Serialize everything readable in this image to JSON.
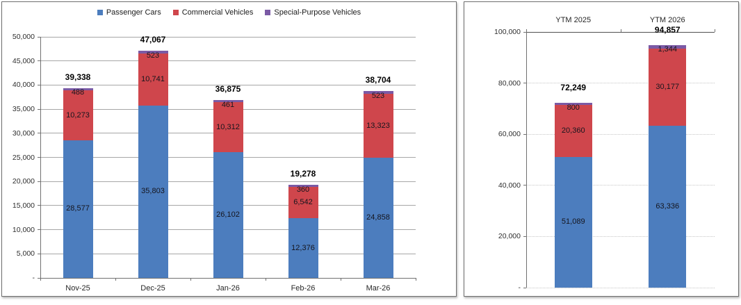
{
  "colors": {
    "passenger_cars": "#4c7dbe",
    "commercial_vehicles": "#cf464c",
    "special_purpose_vehicles": "#7b5aa5",
    "grid_solid": "#a6a6a6",
    "grid_dotted": "#c6c6c6",
    "axis": "#707070"
  },
  "legend": {
    "position": "top",
    "entries": [
      "Passenger Cars",
      "Commercial Vehicles",
      "Special-Purpose Vehicles"
    ]
  },
  "chart_data": [
    {
      "id": "monthly",
      "type": "bar",
      "stacked": true,
      "title": "",
      "xlabel": "",
      "ylabel": "",
      "categories": [
        "Nov-25",
        "Dec-25",
        "Jan-26",
        "Feb-26",
        "Mar-26"
      ],
      "series": [
        {
          "name": "Passenger Cars",
          "color": "#4c7dbe",
          "values": [
            28577,
            35803,
            26102,
            12376,
            24858
          ]
        },
        {
          "name": "Commercial Vehicles",
          "color": "#cf464c",
          "values": [
            10273,
            10741,
            10312,
            6542,
            13323
          ]
        },
        {
          "name": "Special-Purpose Vehicles",
          "color": "#7b5aa5",
          "values": [
            488,
            523,
            461,
            360,
            523
          ]
        }
      ],
      "totals": [
        39338,
        47067,
        36875,
        19278,
        38704
      ],
      "ylim": [
        0,
        50000
      ],
      "ytick_step": 5000,
      "zero_label": "-",
      "grid": "solid",
      "legend_position": "top",
      "category_axis": "bottom"
    },
    {
      "id": "ytm",
      "type": "bar",
      "stacked": true,
      "title": "",
      "xlabel": "",
      "ylabel": "",
      "categories": [
        "YTM 2025",
        "YTM 2026"
      ],
      "series": [
        {
          "name": "Passenger Cars",
          "color": "#4c7dbe",
          "values": [
            51089,
            63336
          ]
        },
        {
          "name": "Commercial Vehicles",
          "color": "#cf464c",
          "values": [
            20360,
            30177
          ]
        },
        {
          "name": "Special-Purpose Vehicles",
          "color": "#7b5aa5",
          "values": [
            800,
            1344
          ]
        }
      ],
      "totals": [
        72249,
        94857
      ],
      "ylim": [
        0,
        100000
      ],
      "ytick_step": 20000,
      "zero_label": "-",
      "grid": "dotted",
      "legend_position": "none",
      "category_axis": "top"
    }
  ]
}
